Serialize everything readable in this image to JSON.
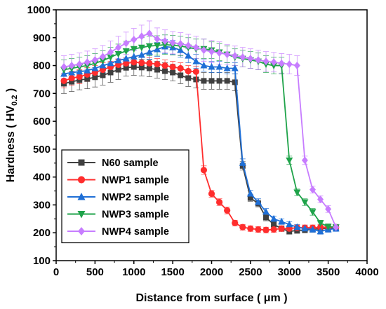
{
  "chart_data": {
    "type": "line",
    "xlabel": "Distance from surface ( μm )",
    "ylabel_prefix": "Hardness ( HV",
    "ylabel_sub": "0.2",
    "ylabel_suffix": " )",
    "xlim": [
      0,
      4000
    ],
    "ylim": [
      100,
      1000
    ],
    "xticks": [
      0,
      500,
      1000,
      1500,
      2000,
      2500,
      3000,
      3500,
      4000
    ],
    "yticks": [
      100,
      200,
      300,
      400,
      500,
      600,
      700,
      800,
      900,
      1000
    ],
    "legend_position": "lower-left",
    "series": [
      {
        "name": "N60 sample",
        "color": "#404040",
        "marker": "square",
        "x": [
          100,
          200,
          300,
          400,
          500,
          600,
          700,
          800,
          900,
          1000,
          1100,
          1200,
          1300,
          1400,
          1500,
          1600,
          1700,
          1800,
          1900,
          2000,
          2100,
          2200,
          2300,
          2400,
          2500,
          2600,
          2700,
          2800,
          2900,
          3000,
          3100,
          3200,
          3300,
          3400,
          3500,
          3600
        ],
        "y": [
          735,
          742,
          748,
          752,
          758,
          765,
          775,
          785,
          792,
          795,
          793,
          790,
          785,
          780,
          775,
          765,
          755,
          750,
          745,
          745,
          745,
          745,
          740,
          440,
          325,
          305,
          255,
          230,
          215,
          205,
          208,
          210,
          212,
          215,
          215,
          218
        ],
        "err": [
          35,
          35,
          35,
          35,
          35,
          35,
          35,
          35,
          30,
          30,
          30,
          30,
          30,
          30,
          30,
          30,
          30,
          30,
          30,
          30,
          30,
          30,
          30,
          15,
          12,
          12,
          12,
          10,
          10,
          10,
          10,
          10,
          10,
          10,
          10,
          10
        ]
      },
      {
        "name": "NWP1 sample",
        "color": "#ff2d2d",
        "marker": "circle",
        "x": [
          100,
          200,
          300,
          400,
          500,
          600,
          700,
          800,
          900,
          1000,
          1100,
          1200,
          1300,
          1400,
          1500,
          1600,
          1700,
          1800,
          1900,
          2000,
          2100,
          2200,
          2300,
          2400,
          2500,
          2600,
          2700,
          2800,
          2900,
          3000,
          3100,
          3200,
          3300,
          3400,
          3500,
          3600
        ],
        "y": [
          745,
          755,
          760,
          768,
          775,
          785,
          795,
          803,
          808,
          812,
          810,
          808,
          805,
          800,
          795,
          790,
          780,
          778,
          425,
          340,
          310,
          280,
          235,
          220,
          215,
          212,
          210,
          212,
          215,
          215,
          218,
          218,
          218,
          220,
          220,
          220
        ],
        "err": [
          25,
          25,
          25,
          25,
          25,
          25,
          20,
          20,
          20,
          20,
          20,
          20,
          20,
          20,
          20,
          20,
          20,
          20,
          15,
          12,
          12,
          12,
          10,
          10,
          10,
          10,
          10,
          10,
          10,
          10,
          10,
          10,
          10,
          10,
          10,
          10
        ]
      },
      {
        "name": "NWP2 sample",
        "color": "#1f6fd6",
        "marker": "triangle-up",
        "x": [
          100,
          200,
          300,
          400,
          500,
          600,
          700,
          800,
          900,
          1000,
          1100,
          1200,
          1300,
          1400,
          1500,
          1600,
          1700,
          1800,
          1900,
          2000,
          2100,
          2200,
          2300,
          2400,
          2500,
          2600,
          2700,
          2800,
          2900,
          3000,
          3100,
          3200,
          3300,
          3400,
          3500,
          3600
        ],
        "y": [
          770,
          775,
          778,
          782,
          790,
          800,
          808,
          818,
          825,
          832,
          838,
          848,
          858,
          868,
          865,
          855,
          835,
          815,
          800,
          795,
          795,
          790,
          790,
          450,
          340,
          310,
          275,
          250,
          240,
          230,
          220,
          215,
          212,
          205,
          212,
          215
        ],
        "err": [
          25,
          25,
          25,
          25,
          25,
          25,
          25,
          25,
          25,
          25,
          25,
          25,
          25,
          25,
          25,
          25,
          25,
          25,
          20,
          20,
          20,
          20,
          20,
          15,
          12,
          12,
          12,
          10,
          10,
          10,
          10,
          10,
          10,
          10,
          10,
          10
        ]
      },
      {
        "name": "NWP3 sample",
        "color": "#1fa34a",
        "marker": "triangle-down",
        "x": [
          100,
          200,
          300,
          400,
          500,
          600,
          700,
          800,
          900,
          1000,
          1100,
          1200,
          1300,
          1400,
          1500,
          1600,
          1700,
          1800,
          1900,
          2000,
          2100,
          2200,
          2300,
          2400,
          2500,
          2600,
          2700,
          2800,
          2900,
          3000,
          3100,
          3200,
          3300,
          3400,
          3500,
          3600
        ],
        "y": [
          785,
          790,
          795,
          800,
          808,
          818,
          830,
          842,
          852,
          860,
          865,
          870,
          872,
          875,
          873,
          870,
          865,
          860,
          860,
          855,
          848,
          840,
          830,
          825,
          820,
          815,
          805,
          800,
          800,
          460,
          345,
          310,
          275,
          235,
          222,
          220
        ],
        "err": [
          35,
          35,
          35,
          35,
          35,
          35,
          35,
          35,
          35,
          35,
          35,
          35,
          35,
          35,
          35,
          35,
          35,
          35,
          35,
          30,
          30,
          30,
          30,
          30,
          30,
          30,
          30,
          30,
          30,
          15,
          12,
          12,
          12,
          10,
          10,
          10
        ]
      },
      {
        "name": "NWP4 sample",
        "color": "#c77dff",
        "marker": "diamond",
        "x": [
          100,
          200,
          300,
          400,
          500,
          600,
          700,
          800,
          900,
          1000,
          1100,
          1200,
          1300,
          1400,
          1500,
          1600,
          1700,
          1800,
          1900,
          2000,
          2100,
          2200,
          2300,
          2400,
          2500,
          2600,
          2700,
          2800,
          2900,
          3000,
          3100,
          3200,
          3300,
          3400,
          3500,
          3600
        ],
        "y": [
          795,
          800,
          805,
          812,
          820,
          832,
          848,
          865,
          880,
          893,
          905,
          915,
          895,
          888,
          882,
          878,
          872,
          865,
          855,
          850,
          845,
          840,
          835,
          830,
          825,
          820,
          815,
          812,
          808,
          805,
          800,
          460,
          355,
          320,
          285,
          220
        ],
        "err": [
          40,
          40,
          40,
          40,
          40,
          40,
          40,
          40,
          40,
          40,
          40,
          45,
          40,
          40,
          40,
          40,
          40,
          40,
          40,
          40,
          40,
          35,
          35,
          35,
          35,
          35,
          35,
          35,
          35,
          35,
          35,
          15,
          12,
          12,
          12,
          10
        ]
      }
    ]
  }
}
